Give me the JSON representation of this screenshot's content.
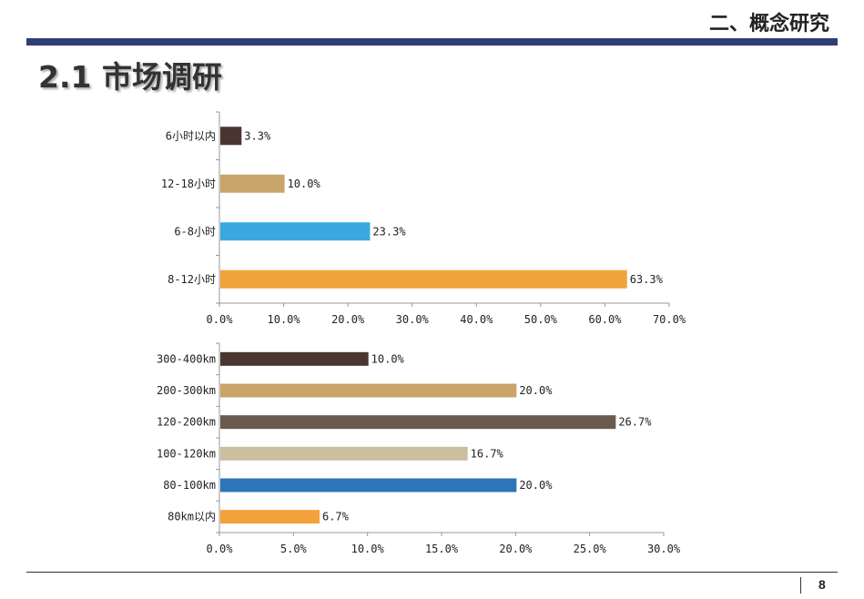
{
  "header": {
    "section_title": "二、概念研究",
    "page_heading": "2.1 市场调研"
  },
  "footer": {
    "page_number": "8"
  },
  "chart_data": [
    {
      "type": "bar",
      "orientation": "horizontal",
      "categories": [
        "6小时以内",
        "12-18小时",
        "6-8小时",
        "8-12小时"
      ],
      "values": [
        3.3,
        10.0,
        23.3,
        63.3
      ],
      "value_labels": [
        "3.3%",
        "10.0%",
        "23.3%",
        "63.3%"
      ],
      "colors": [
        "#4a3530",
        "#c9a46b",
        "#3aa8e0",
        "#f2a23a"
      ],
      "xlim": [
        0,
        70
      ],
      "xticks": [
        "0.0%",
        "10.0%",
        "20.0%",
        "30.0%",
        "40.0%",
        "50.0%",
        "60.0%",
        "70.0%"
      ]
    },
    {
      "type": "bar",
      "orientation": "horizontal",
      "categories": [
        "300-400km",
        "200-300km",
        "120-200km",
        "100-120km",
        "80-100km",
        "80km以内"
      ],
      "values": [
        10.0,
        20.0,
        26.7,
        16.7,
        20.0,
        6.7
      ],
      "value_labels": [
        "10.0%",
        "20.0%",
        "26.7%",
        "16.7%",
        "20.0%",
        "6.7%"
      ],
      "colors": [
        "#4a3530",
        "#c9a46b",
        "#6b5a4e",
        "#cbbf9f",
        "#2e74b8",
        "#f2a23a"
      ],
      "xlim": [
        0,
        30
      ],
      "xticks": [
        "0.0%",
        "5.0%",
        "10.0%",
        "15.0%",
        "20.0%",
        "25.0%",
        "30.0%"
      ]
    }
  ]
}
